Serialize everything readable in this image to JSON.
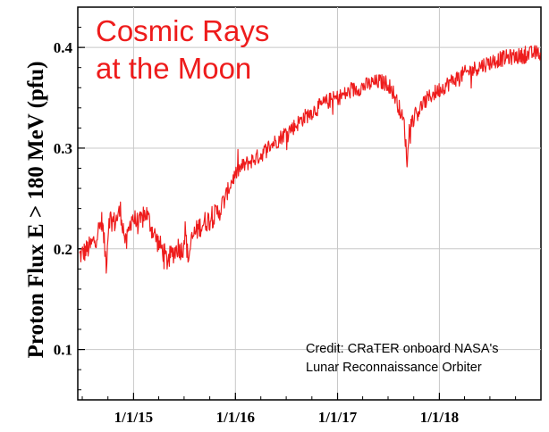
{
  "chart_data": {
    "type": "line",
    "title_lines": [
      "Cosmic Rays",
      "at the Moon"
    ],
    "ylabel": "Proton Flux E > 180 MeV (pfu)",
    "xlabel": "",
    "x_ticks": [
      "1/1/15",
      "1/1/16",
      "1/1/17",
      "1/1/18"
    ],
    "y_ticks": [
      "0.1",
      "0.2",
      "0.3",
      "0.4"
    ],
    "xlim": [
      "2014-06-15",
      "2018-12-31"
    ],
    "ylim": [
      0.05,
      0.44
    ],
    "grid": true,
    "annotation_lines": [
      "Credit: CRaTER onboard NASA's",
      "Lunar Reconnaissance Orbiter"
    ],
    "line_color": "#ee1c1c",
    "series": [
      {
        "values": [
          [
            "2014-06-20",
            0.193
          ],
          [
            "2014-07-10",
            0.197
          ],
          [
            "2014-08-01",
            0.203
          ],
          [
            "2014-08-20",
            0.212
          ],
          [
            "2014-09-10",
            0.228
          ],
          [
            "2014-09-25",
            0.185
          ],
          [
            "2014-10-05",
            0.232
          ],
          [
            "2014-10-25",
            0.226
          ],
          [
            "2014-11-15",
            0.238
          ],
          [
            "2014-12-05",
            0.203
          ],
          [
            "2014-12-25",
            0.232
          ],
          [
            "2015-01-20",
            0.224
          ],
          [
            "2015-02-15",
            0.236
          ],
          [
            "2015-03-10",
            0.218
          ],
          [
            "2015-04-01",
            0.205
          ],
          [
            "2015-04-20",
            0.196
          ],
          [
            "2015-05-01",
            0.188
          ],
          [
            "2015-05-20",
            0.195
          ],
          [
            "2015-06-10",
            0.202
          ],
          [
            "2015-06-25",
            0.198
          ],
          [
            "2015-07-05",
            0.218
          ],
          [
            "2015-07-15",
            0.19
          ],
          [
            "2015-08-01",
            0.212
          ],
          [
            "2015-08-25",
            0.222
          ],
          [
            "2015-09-15",
            0.227
          ],
          [
            "2015-10-15",
            0.232
          ],
          [
            "2015-11-10",
            0.24
          ],
          [
            "2015-12-01",
            0.255
          ],
          [
            "2015-12-20",
            0.268
          ],
          [
            "2016-01-10",
            0.278
          ],
          [
            "2016-02-01",
            0.283
          ],
          [
            "2016-03-01",
            0.288
          ],
          [
            "2016-04-01",
            0.293
          ],
          [
            "2016-05-01",
            0.302
          ],
          [
            "2016-06-01",
            0.308
          ],
          [
            "2016-07-01",
            0.316
          ],
          [
            "2016-08-01",
            0.322
          ],
          [
            "2016-09-01",
            0.33
          ],
          [
            "2016-10-01",
            0.336
          ],
          [
            "2016-11-01",
            0.342
          ],
          [
            "2016-12-01",
            0.347
          ],
          [
            "2017-01-01",
            0.35
          ],
          [
            "2017-02-01",
            0.354
          ],
          [
            "2017-03-01",
            0.358
          ],
          [
            "2017-04-01",
            0.361
          ],
          [
            "2017-05-01",
            0.364
          ],
          [
            "2017-06-01",
            0.366
          ],
          [
            "2017-07-01",
            0.364
          ],
          [
            "2017-07-20",
            0.355
          ],
          [
            "2017-08-10",
            0.34
          ],
          [
            "2017-08-28",
            0.324
          ],
          [
            "2017-09-08",
            0.283
          ],
          [
            "2017-09-15",
            0.322
          ],
          [
            "2017-10-01",
            0.33
          ],
          [
            "2017-10-20",
            0.338
          ],
          [
            "2017-11-10",
            0.346
          ],
          [
            "2017-12-01",
            0.352
          ],
          [
            "2018-01-01",
            0.358
          ],
          [
            "2018-02-01",
            0.364
          ],
          [
            "2018-03-01",
            0.369
          ],
          [
            "2018-04-01",
            0.374
          ],
          [
            "2018-05-01",
            0.378
          ],
          [
            "2018-06-01",
            0.382
          ],
          [
            "2018-07-01",
            0.385
          ],
          [
            "2018-08-01",
            0.388
          ],
          [
            "2018-09-01",
            0.39
          ],
          [
            "2018-10-01",
            0.391
          ],
          [
            "2018-11-01",
            0.392
          ],
          [
            "2018-12-01",
            0.394
          ],
          [
            "2018-12-28",
            0.395
          ]
        ]
      }
    ]
  }
}
